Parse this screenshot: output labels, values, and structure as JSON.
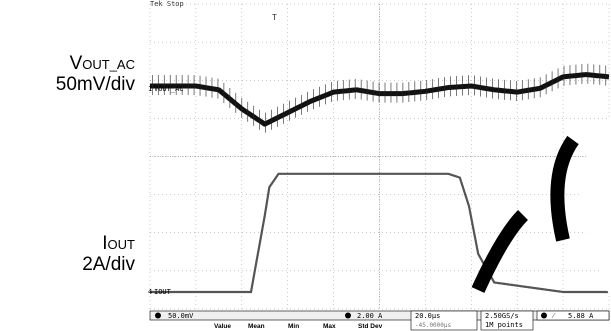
{
  "labels": {
    "vout": {
      "main": "V",
      "sub": "OUT_AC",
      "scale": "50mV/div"
    },
    "iout": {
      "main": "I",
      "sub": "OUT",
      "scale": "2A/div"
    }
  },
  "scope": {
    "top_label": "Tek Stop",
    "trigger_marker": "T",
    "ch1_marker": "1",
    "ch1_label": "VOUT_AC",
    "ch4_marker": "4",
    "ch4_label": "IOUT",
    "ch1_scale": "50.0mV",
    "ch4_scale": "2.00 A",
    "timebase": "20.0µs",
    "trigger_pos": "-45.0000µs",
    "sample_rate": "2.50GS/s",
    "record_length": "1M points",
    "trigger_level": "5.88 A",
    "stats_headers": [
      "Value",
      "Mean",
      "Min",
      "Max",
      "Std Dev"
    ]
  },
  "chart_data": [
    {
      "type": "line",
      "title": "",
      "xlabel": "",
      "ylabel": "VOUT_AC 50mV/div",
      "x_unit": "µs",
      "x": [
        0,
        10,
        20,
        30,
        40,
        50,
        60,
        70,
        80,
        90,
        100,
        110,
        120,
        130,
        140,
        150,
        160,
        170,
        180,
        190,
        200
      ],
      "series": [
        {
          "name": "VOUT_AC",
          "values": [
            0,
            0,
            0,
            -5,
            -30,
            -50,
            -35,
            -20,
            -8,
            -5,
            -10,
            -10,
            -7,
            -2,
            0,
            -5,
            -8,
            -3,
            12,
            15,
            12
          ]
        }
      ],
      "y_unit": "mV",
      "ylim": [
        -200,
        200
      ]
    },
    {
      "type": "line",
      "title": "",
      "xlabel": "",
      "ylabel": "IOUT 2A/div",
      "x_unit": "µs",
      "x": [
        0,
        20,
        44,
        50,
        52,
        56,
        130,
        135,
        139,
        143,
        150,
        180,
        200
      ],
      "series": [
        {
          "name": "IOUT",
          "values": [
            0,
            0,
            0,
            4,
            5.5,
            6.2,
            6.2,
            6.0,
            4.5,
            2.0,
            0.5,
            0,
            0
          ]
        }
      ],
      "y_unit": "A",
      "ylim": [
        0,
        16
      ]
    }
  ]
}
